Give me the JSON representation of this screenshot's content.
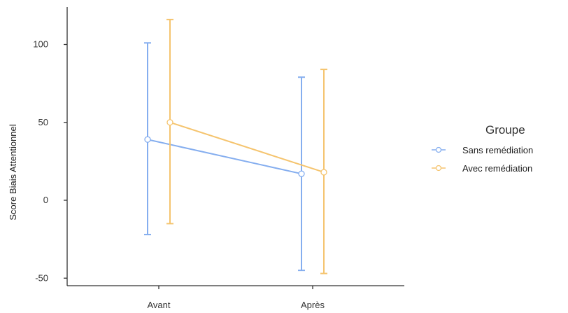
{
  "chart_data": {
    "type": "line",
    "categories": [
      "Avant",
      "Après"
    ],
    "ylabel": "Score Biais Attentionnel",
    "xlabel": "",
    "ylim": [
      -55,
      125
    ],
    "yticks": [
      100,
      50,
      0,
      -50
    ],
    "legend": {
      "title": "Groupe",
      "placement": "right"
    },
    "series": [
      {
        "name": "Sans remédiation",
        "color": "#85aeef",
        "values": [
          39,
          17
        ],
        "error_low": [
          -22,
          -45
        ],
        "error_high": [
          101,
          79
        ]
      },
      {
        "name": "Avec remédiation",
        "color": "#f5c46e",
        "values": [
          50,
          18
        ],
        "error_low": [
          -15,
          -47
        ],
        "error_high": [
          116,
          84
        ]
      }
    ]
  }
}
